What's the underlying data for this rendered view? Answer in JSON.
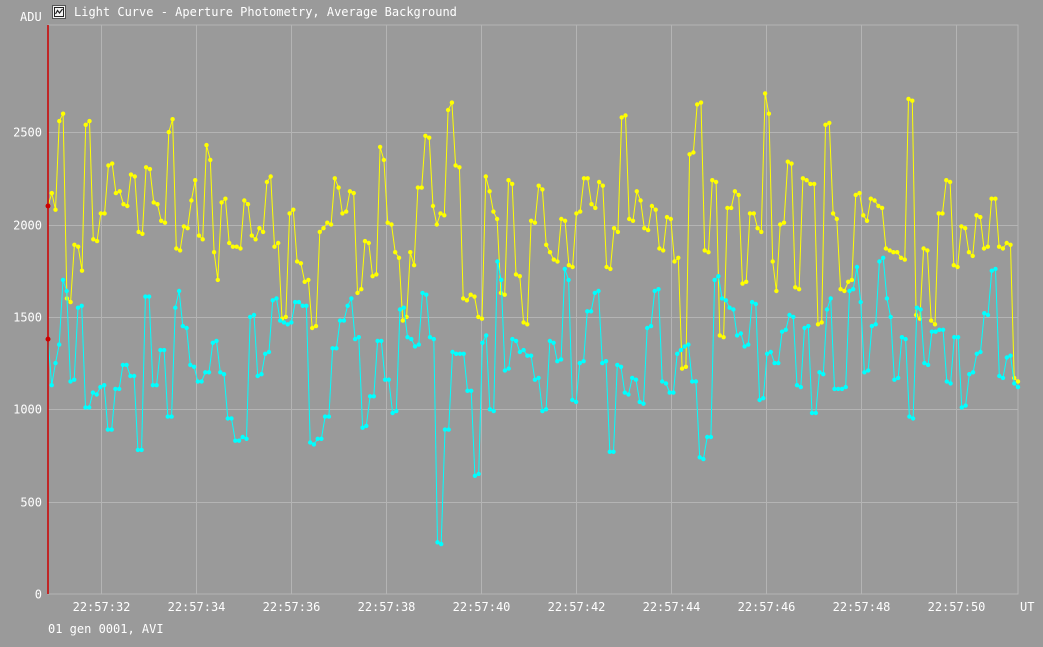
{
  "window": {
    "title": "Light Curve - Aperture Photometry, Average Background",
    "icon": "chart-window-icon"
  },
  "footer": {
    "text": "01 gen 0001, AVI"
  },
  "colors": {
    "background": "#9a9a9a",
    "grid": "#b4b4b4",
    "series_1": "#ffff00",
    "series_2": "#00ffff",
    "cursor": "#cc0000"
  },
  "chart_data": {
    "type": "line",
    "ylabel": "ADU",
    "xlabel": "UT",
    "ylim": [
      0,
      3080
    ],
    "yticks": [
      0,
      500,
      1000,
      1500,
      2000,
      2500
    ],
    "xlim": [
      0,
      97
    ],
    "xticks": [
      {
        "t": 5.25,
        "label": "22:57:32"
      },
      {
        "t": 14.75,
        "label": "22:57:34"
      },
      {
        "t": 24.25,
        "label": "22:57:36"
      },
      {
        "t": 33.75,
        "label": "22:57:38"
      },
      {
        "t": 43.25,
        "label": "22:57:40"
      },
      {
        "t": 52.75,
        "label": "22:57:42"
      },
      {
        "t": 62.25,
        "label": "22:57:44"
      },
      {
        "t": 71.75,
        "label": "22:57:46"
      },
      {
        "t": 81.25,
        "label": "22:57:48"
      },
      {
        "t": 90.75,
        "label": "22:57:50"
      }
    ],
    "grid": true,
    "cursor_x": 0,
    "series": [
      {
        "color": "#ffff00",
        "values": [
          2100,
          2170,
          2080,
          2560,
          2600,
          1600,
          1580,
          1890,
          1880,
          1750,
          2540,
          2560,
          1920,
          1910,
          2060,
          2060,
          2320,
          2330,
          2170,
          2180,
          2110,
          2100,
          2270,
          2260,
          1960,
          1950,
          2310,
          2300,
          2120,
          2110,
          2020,
          2010,
          2500,
          2570,
          1870,
          1860,
          1990,
          1980,
          2130,
          2240,
          1940,
          1920,
          2430,
          2350,
          1850,
          1700,
          2120,
          2140,
          1900,
          1880,
          1880,
          1870,
          2130,
          2110,
          1940,
          1920,
          1980,
          1960,
          2230,
          2260,
          1880,
          1900,
          1490,
          1500,
          2060,
          2080,
          1800,
          1790,
          1690,
          1700,
          1440,
          1450,
          1960,
          1980,
          2010,
          2000,
          2250,
          2200,
          2060,
          2070,
          2180,
          2170,
          1630,
          1650,
          1910,
          1900,
          1720,
          1730,
          2420,
          2350,
          2010,
          2000,
          1850,
          1820,
          1480,
          1500,
          1850,
          1780,
          2200,
          2200,
          2480,
          2470,
          2100,
          2000,
          2060,
          2050,
          2620,
          2660,
          2320,
          2310,
          1600,
          1590,
          1620,
          1610,
          1500,
          1490,
          2260,
          2180,
          2070,
          2030,
          1630,
          1620,
          2240,
          2220,
          1730,
          1720,
          1470,
          1460,
          2020,
          2010,
          2210,
          2190,
          1890,
          1850,
          1810,
          1800,
          2030,
          2020,
          1780,
          1770,
          2060,
          2070,
          2250,
          2250,
          2110,
          2090,
          2230,
          2210,
          1770,
          1760,
          1980,
          1960,
          2580,
          2590,
          2030,
          2020,
          2180,
          2130,
          1980,
          1970,
          2100,
          2080,
          1870,
          1860,
          2040,
          2030,
          1800,
          1820,
          1220,
          1230,
          2380,
          2390,
          2650,
          2660,
          1860,
          1850,
          2240,
          2230,
          1400,
          1390,
          2090,
          2090,
          2180,
          2160,
          1680,
          1690,
          2060,
          2060,
          1980,
          1960,
          2710,
          2600,
          1800,
          1640,
          2000,
          2010,
          2340,
          2330,
          1660,
          1650,
          2250,
          2240,
          2220,
          2220,
          1460,
          1470,
          2540,
          2550,
          2060,
          2030,
          1650,
          1640,
          1690,
          1700,
          2160,
          2170,
          2050,
          2020,
          2140,
          2130,
          2100,
          2090,
          1870,
          1860,
          1850,
          1850,
          1820,
          1810,
          2680,
          2670,
          1510,
          1490,
          1870,
          1860,
          1480,
          1460,
          2060,
          2060,
          2240,
          2230,
          1780,
          1770,
          1990,
          1980,
          1850,
          1830,
          2050,
          2040,
          1870,
          1880,
          2140,
          2140,
          1880,
          1870,
          1900,
          1890,
          1170,
          1150
        ]
      },
      {
        "color": "#00ffff",
        "values": [
          1380,
          1130,
          1250,
          1350,
          1700,
          1640,
          1150,
          1160,
          1550,
          1560,
          1010,
          1010,
          1090,
          1080,
          1120,
          1130,
          890,
          890,
          1110,
          1110,
          1240,
          1240,
          1180,
          1180,
          780,
          780,
          1610,
          1610,
          1130,
          1130,
          1320,
          1320,
          960,
          960,
          1550,
          1640,
          1450,
          1440,
          1240,
          1230,
          1150,
          1150,
          1200,
          1200,
          1360,
          1370,
          1200,
          1190,
          950,
          950,
          830,
          830,
          850,
          840,
          1500,
          1510,
          1180,
          1190,
          1300,
          1310,
          1590,
          1600,
          1480,
          1470,
          1460,
          1470,
          1580,
          1580,
          1560,
          1560,
          820,
          810,
          840,
          840,
          960,
          960,
          1330,
          1330,
          1480,
          1480,
          1560,
          1600,
          1380,
          1390,
          900,
          910,
          1070,
          1070,
          1370,
          1370,
          1160,
          1160,
          980,
          990,
          1540,
          1550,
          1390,
          1380,
          1340,
          1350,
          1630,
          1620,
          1390,
          1380,
          280,
          270,
          890,
          890,
          1310,
          1300,
          1300,
          1300,
          1100,
          1100,
          640,
          650,
          1360,
          1400,
          1000,
          990,
          1800,
          1700,
          1210,
          1220,
          1380,
          1370,
          1310,
          1320,
          1290,
          1290,
          1160,
          1170,
          990,
          1000,
          1370,
          1360,
          1260,
          1270,
          1760,
          1700,
          1050,
          1040,
          1250,
          1260,
          1530,
          1530,
          1630,
          1640,
          1250,
          1260,
          770,
          770,
          1240,
          1230,
          1090,
          1080,
          1170,
          1160,
          1040,
          1030,
          1440,
          1450,
          1640,
          1650,
          1150,
          1140,
          1090,
          1090,
          1300,
          1320,
          1340,
          1350,
          1150,
          1150,
          740,
          730,
          850,
          850,
          1700,
          1720,
          1600,
          1590,
          1550,
          1540,
          1400,
          1410,
          1340,
          1350,
          1580,
          1570,
          1050,
          1060,
          1300,
          1310,
          1250,
          1250,
          1420,
          1430,
          1510,
          1500,
          1130,
          1120,
          1440,
          1450,
          980,
          980,
          1200,
          1190,
          1540,
          1600,
          1110,
          1110,
          1110,
          1120,
          1640,
          1650,
          1770,
          1580,
          1200,
          1210,
          1450,
          1460,
          1800,
          1820,
          1600,
          1500,
          1160,
          1170,
          1390,
          1380,
          960,
          950,
          1550,
          1540,
          1250,
          1240,
          1420,
          1420,
          1430,
          1430,
          1150,
          1140,
          1390,
          1390,
          1010,
          1020,
          1190,
          1200,
          1300,
          1310,
          1520,
          1510,
          1750,
          1760,
          1180,
          1170,
          1280,
          1290,
          1140,
          1120
        ]
      }
    ]
  }
}
